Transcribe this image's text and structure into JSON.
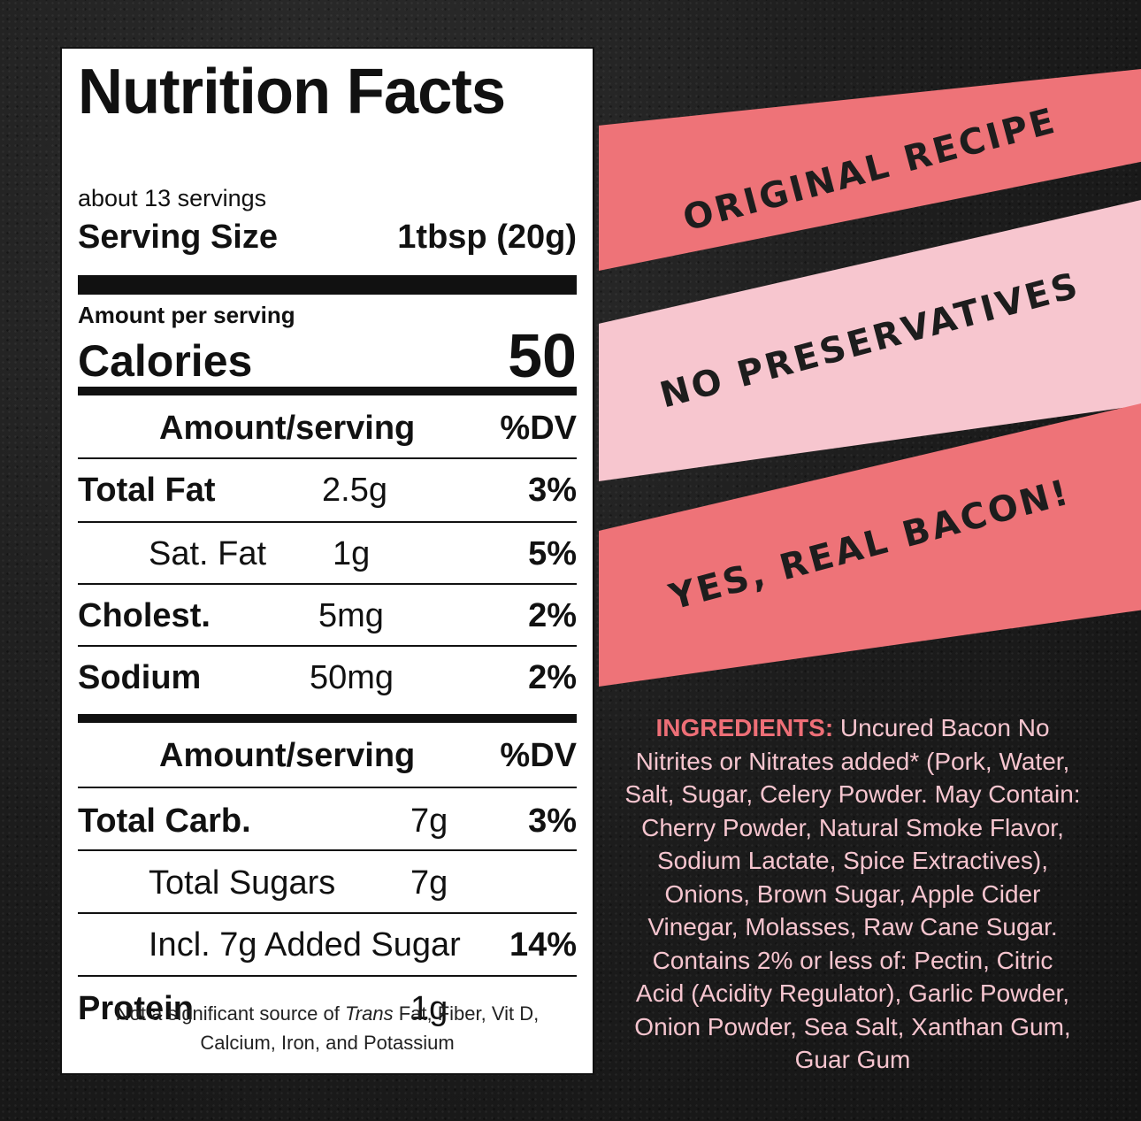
{
  "nutrition": {
    "title": "Nutrition Facts",
    "servings": "about 13 servings",
    "serving_size_label": "Serving Size",
    "serving_size_value": "1tbsp (20g)",
    "amount_per_serving": "Amount per serving",
    "calories_label": "Calories",
    "calories_value": "50",
    "header_amount": "Amount/serving",
    "header_dv": "%DV",
    "rows": [
      {
        "label": "Total Fat",
        "amount": "2.5g",
        "dv": "3%"
      },
      {
        "label": "Sat. Fat",
        "amount": "1g",
        "dv": "5%"
      },
      {
        "label": "Cholest.",
        "amount": "5mg",
        "dv": "2%"
      },
      {
        "label": "Sodium",
        "amount": "50mg",
        "dv": "2%"
      },
      {
        "label": "Total Carb.",
        "amount": "7g",
        "dv": "3%"
      },
      {
        "label": "Total Sugars",
        "amount": "7g",
        "dv": ""
      },
      {
        "label": "Incl. 7g Added Sugar",
        "amount": "",
        "dv": "14%"
      },
      {
        "label": "Protein",
        "amount": "1g",
        "dv": ""
      }
    ],
    "footnote_pre": "Not a significant source of ",
    "footnote_trans": "Trans",
    "footnote_line1_rest": " Fat, Fiber, Vit D,",
    "footnote_line2": "Calcium, Iron, and Potassium"
  },
  "banners": [
    {
      "text": "ORIGINAL RECIPE",
      "color": "#ee7378"
    },
    {
      "text": "NO PRESERVATIVES",
      "color": "#f7c6cf"
    },
    {
      "text": "YES, REAL BACON!",
      "color": "#ee7378"
    }
  ],
  "ingredients": {
    "label": "INGREDIENTS:",
    "lines": [
      " Uncured Bacon No",
      "Nitrites or Nitrates added* (Pork, Water,",
      "Salt, Sugar, Celery Powder. May Contain:",
      "Cherry Powder, Natural Smoke Flavor,",
      "Sodium Lactate, Spice Extractives),",
      "Onions, Brown Sugar, Apple Cider",
      "Vinegar, Molasses, Raw Cane Sugar.",
      "Contains 2% or less of: Pectin, Citric",
      "Acid (Acidity Regulator), Garlic Powder,",
      "Onion Powder, Sea Salt, Xanthan Gum,",
      "Guar Gum"
    ]
  }
}
